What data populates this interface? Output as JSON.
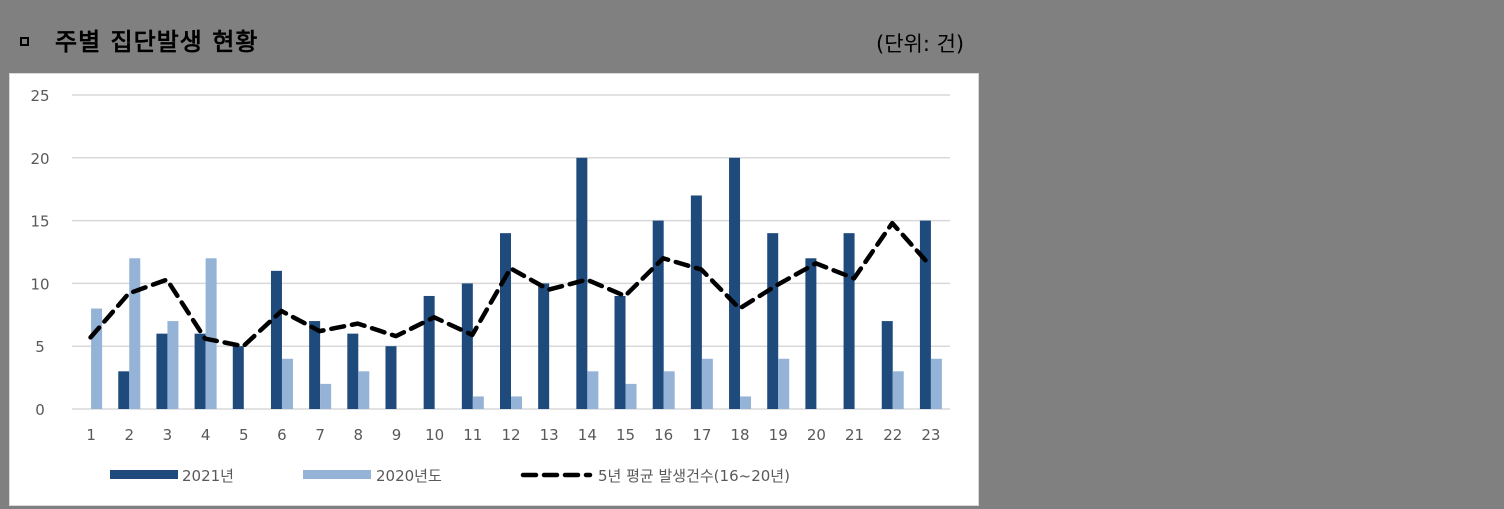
{
  "header": {
    "bullet_icon": "hollow-square",
    "title": "주별 집단발생 현황",
    "unit_label": "(단위: 건)"
  },
  "colors": {
    "page_background": "#808080",
    "series_2021": "#1F4A7C",
    "series_2020": "#95B3D7",
    "avg_line": "#000000",
    "gridline": "#D9D9D9",
    "axis_text": "#595959"
  },
  "chart_data": {
    "type": "bar",
    "title": "주별 집단발생 현황",
    "unit": "건",
    "xlabel": "",
    "ylabel": "",
    "ylim": [
      0,
      25
    ],
    "yticks": [
      0,
      5,
      10,
      15,
      20,
      25
    ],
    "grid": true,
    "legend_position": "bottom",
    "categories": [
      "1",
      "2",
      "3",
      "4",
      "5",
      "6",
      "7",
      "8",
      "9",
      "10",
      "11",
      "12",
      "13",
      "14",
      "15",
      "16",
      "17",
      "18",
      "19",
      "20",
      "21",
      "22",
      "23"
    ],
    "series": [
      {
        "name": "2021년",
        "type": "bar",
        "color": "#1F4A7C",
        "values": [
          0,
          3,
          6,
          6,
          5,
          11,
          7,
          6,
          5,
          9,
          10,
          14,
          10,
          20,
          9,
          15,
          17,
          20,
          14,
          12,
          14,
          7,
          15
        ]
      },
      {
        "name": "2020년도",
        "type": "bar",
        "color": "#95B3D7",
        "values": [
          8,
          12,
          7,
          12,
          0,
          4,
          2,
          3,
          0,
          0,
          1,
          1,
          0,
          3,
          2,
          3,
          4,
          1,
          4,
          0,
          0,
          3,
          4
        ]
      },
      {
        "name": "5년 평균 발생건수(16~20년)",
        "type": "line",
        "style": "dashed",
        "color": "#000000",
        "values": [
          5.7,
          9.2,
          10.3,
          5.6,
          5.0,
          7.8,
          6.2,
          6.8,
          5.8,
          7.3,
          5.9,
          11.2,
          9.5,
          10.3,
          9.0,
          12.0,
          11.1,
          8.0,
          9.9,
          11.6,
          10.4,
          14.8,
          11.4
        ]
      }
    ]
  }
}
